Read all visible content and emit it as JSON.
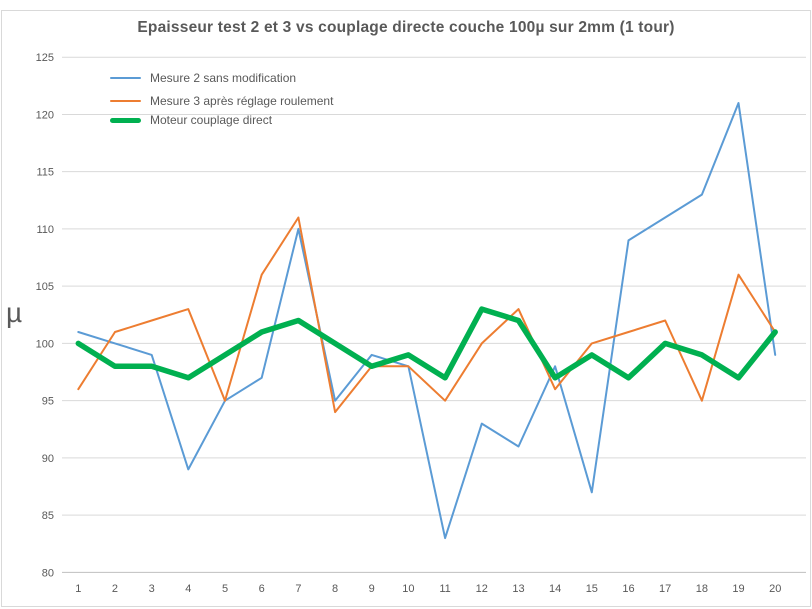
{
  "chart_data": {
    "type": "line",
    "title": "Epaisseur test 2 et 3 vs couplage directe couche 100µ sur 2mm (1 tour)",
    "xlabel": "",
    "ylabel": "µ",
    "categories": [
      1,
      2,
      3,
      4,
      5,
      6,
      7,
      8,
      9,
      10,
      11,
      12,
      13,
      14,
      15,
      16,
      17,
      18,
      19,
      20
    ],
    "series": [
      {
        "name": "Mesure 2 sans modification",
        "color": "#5b9bd5",
        "stroke_width": 2,
        "values": [
          101,
          100,
          99,
          89,
          95,
          97,
          110,
          95,
          99,
          98,
          83,
          93,
          91,
          98,
          87,
          109,
          111,
          113,
          121,
          99
        ]
      },
      {
        "name": "Mesure 3 après réglage roulement",
        "color": "#ed7d31",
        "stroke_width": 2,
        "values": [
          96,
          101,
          102,
          103,
          95,
          106,
          111,
          94,
          98,
          98,
          95,
          100,
          103,
          96,
          100,
          101,
          102,
          95,
          106,
          101
        ]
      },
      {
        "name": "Moteur couplage direct",
        "color": "#00b050",
        "stroke_width": 5.5,
        "values": [
          100,
          98,
          98,
          97,
          99,
          101,
          102,
          100,
          98,
          99,
          97,
          103,
          102,
          97,
          99,
          97,
          100,
          99,
          97,
          101
        ]
      }
    ],
    "ylim": [
      80,
      125
    ],
    "ytick_step": 5,
    "grid": true,
    "legend_position": "top-left",
    "gridline_color": "#d9d9d9",
    "axis_line_color": "#bfbfbf"
  }
}
